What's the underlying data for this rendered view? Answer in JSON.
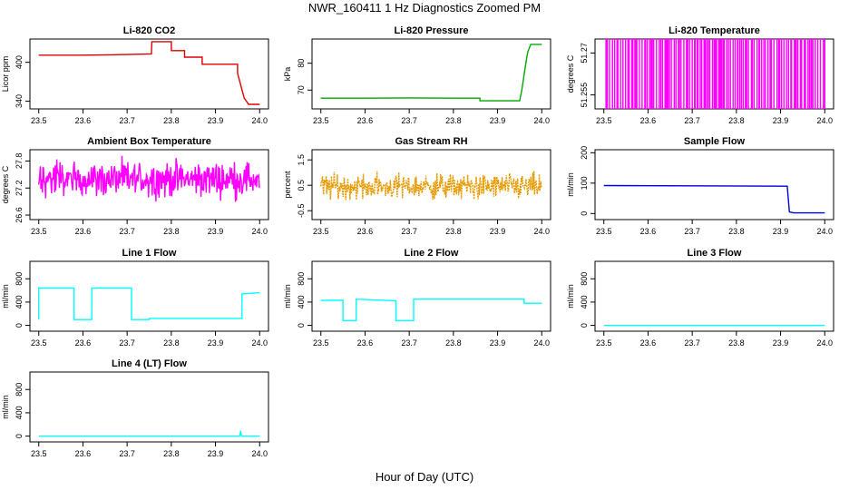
{
  "title": "NWR_160411  1 Hz Diagnostics Zoomed PM",
  "x_axis_title": "Hour of Day (UTC)",
  "chart_data": [
    {
      "type": "line",
      "title": "Li-820 CO2",
      "ylabel": "Licor ppm",
      "color": "#dd0000",
      "xlim": [
        23.48,
        24.02
      ],
      "ylim": [
        328,
        436
      ],
      "yticks": [
        340,
        400
      ],
      "series": [
        {
          "x": [
            23.5,
            23.6,
            23.7,
            23.755,
            23.756,
            23.8,
            23.8,
            23.83,
            23.83,
            23.87,
            23.87,
            23.95,
            23.95,
            23.965,
            23.975,
            24.0
          ],
          "y": [
            411,
            411,
            412,
            413,
            432,
            432,
            418,
            418,
            408,
            408,
            397,
            397,
            383,
            345,
            335,
            335
          ]
        }
      ]
    },
    {
      "type": "line",
      "title": "Li-820 Pressure",
      "ylabel": "kPa",
      "color": "#00aa00",
      "xlim": [
        23.48,
        24.02
      ],
      "ylim": [
        63,
        89
      ],
      "yticks": [
        70,
        80
      ],
      "series": [
        {
          "x": [
            23.5,
            23.6,
            23.7,
            23.8,
            23.86,
            23.86,
            23.92,
            23.95,
            23.955,
            23.962,
            23.968,
            23.975,
            23.99,
            24.0
          ],
          "y": [
            67,
            67,
            67.1,
            67,
            67,
            66,
            66,
            66,
            70,
            78,
            84,
            87,
            87,
            87
          ]
        }
      ]
    },
    {
      "type": "line",
      "title": "Li-820 Temperature",
      "ylabel": "degrees C",
      "color": "#ff00ff",
      "xlim": [
        23.48,
        24.02
      ],
      "ylim": [
        51.25,
        51.275
      ],
      "yticks": [
        51.255,
        51.27
      ],
      "series": [
        {
          "pattern": "toggle",
          "low": 51.25,
          "high": 51.275
        }
      ]
    },
    {
      "type": "line",
      "title": "Ambient Box Temperature",
      "ylabel": "degrees C",
      "color": "#ff00ff",
      "xlim": [
        23.48,
        24.02
      ],
      "ylim": [
        26.5,
        28.05
      ],
      "yticks": [
        26.6,
        27.2,
        27.8
      ],
      "series": [
        {
          "pattern": "noise",
          "center": 27.4,
          "spread": 0.35
        }
      ]
    },
    {
      "type": "line",
      "title": "Gas Stream RH",
      "ylabel": "percent",
      "color": "#e69a00",
      "xlim": [
        23.48,
        24.02
      ],
      "ylim": [
        -0.85,
        1.9
      ],
      "yticks": [
        -0.5,
        0.5,
        1.5
      ],
      "series": [
        {
          "pattern": "noise",
          "center": 0.45,
          "spread": 0.45
        }
      ]
    },
    {
      "type": "line",
      "title": "Sample Flow",
      "ylabel": "ml/min",
      "color": "#0000dd",
      "xlim": [
        23.48,
        24.02
      ],
      "ylim": [
        -20,
        210
      ],
      "yticks": [
        0,
        100,
        200
      ],
      "series": [
        {
          "x": [
            23.5,
            23.7,
            23.915,
            23.92,
            23.93,
            24.0
          ],
          "y": [
            92,
            91,
            90,
            5,
            2,
            2
          ]
        }
      ]
    },
    {
      "type": "line",
      "title": "Line 1 Flow",
      "ylabel": "ml/min",
      "color": "#00ffff",
      "xlim": [
        23.48,
        24.02
      ],
      "ylim": [
        -100,
        1100
      ],
      "yticks": [
        0,
        400,
        800
      ],
      "series": [
        {
          "x": [
            23.5,
            23.5,
            23.58,
            23.58,
            23.62,
            23.62,
            23.71,
            23.71,
            23.75,
            23.75,
            23.96,
            23.96,
            24.0
          ],
          "y": [
            100,
            640,
            640,
            100,
            100,
            640,
            640,
            100,
            100,
            120,
            120,
            540,
            560
          ]
        }
      ]
    },
    {
      "type": "line",
      "title": "Line 2 Flow",
      "ylabel": "ml/min",
      "color": "#00ffff",
      "xlim": [
        23.48,
        24.02
      ],
      "ylim": [
        -100,
        1100
      ],
      "yticks": [
        0,
        400,
        800
      ],
      "series": [
        {
          "x": [
            23.5,
            23.55,
            23.55,
            23.58,
            23.58,
            23.67,
            23.67,
            23.71,
            23.71,
            23.96,
            23.96,
            24.0
          ],
          "y": [
            430,
            430,
            80,
            80,
            450,
            420,
            80,
            80,
            450,
            450,
            380,
            380
          ]
        }
      ]
    },
    {
      "type": "line",
      "title": "Line 3 Flow",
      "ylabel": "ml/min",
      "color": "#00ffff",
      "xlim": [
        23.48,
        24.02
      ],
      "ylim": [
        -100,
        1100
      ],
      "yticks": [
        0,
        400,
        800
      ],
      "series": [
        {
          "x": [
            23.5,
            24.0
          ],
          "y": [
            0,
            0
          ]
        }
      ]
    },
    {
      "type": "line",
      "title": "Line 4 (LT) Flow",
      "ylabel": "ml/min",
      "color": "#00ffff",
      "xlim": [
        23.48,
        24.02
      ],
      "ylim": [
        -100,
        1100
      ],
      "yticks": [
        0,
        400,
        800
      ],
      "series": [
        {
          "x": [
            23.5,
            23.955,
            23.957,
            23.959,
            23.961,
            24.0
          ],
          "y": [
            0,
            0,
            90,
            0,
            0,
            0
          ]
        }
      ]
    }
  ],
  "xticks": [
    23.5,
    23.6,
    23.7,
    23.8,
    23.9,
    24.0
  ]
}
